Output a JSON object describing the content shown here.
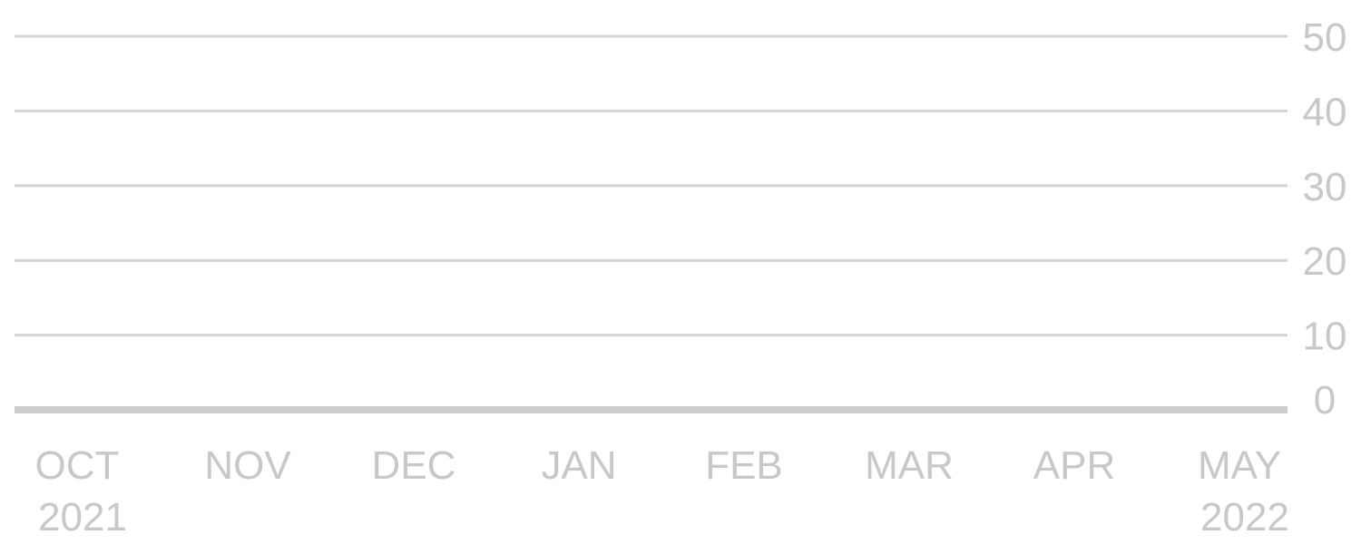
{
  "chart_data": {
    "type": "line",
    "title": "",
    "xlabel": "",
    "ylabel": "",
    "ylim": [
      0,
      50
    ],
    "y_ticks": [
      "0",
      "10",
      "20",
      "30",
      "40",
      "50"
    ],
    "x_ticks": [
      {
        "month": "OCT",
        "year": "2021"
      },
      {
        "month": "NOV",
        "year": ""
      },
      {
        "month": "DEC",
        "year": ""
      },
      {
        "month": "JAN",
        "year": ""
      },
      {
        "month": "FEB",
        "year": ""
      },
      {
        "month": "MAR",
        "year": ""
      },
      {
        "month": "APR",
        "year": ""
      },
      {
        "month": "MAY",
        "year": "2022"
      }
    ],
    "series": [],
    "grid": true,
    "y_axis_position": "right",
    "colors": {
      "grid": "#d4d4d4",
      "baseline": "#cccccc",
      "tick_label": "#c8c8c8"
    }
  }
}
